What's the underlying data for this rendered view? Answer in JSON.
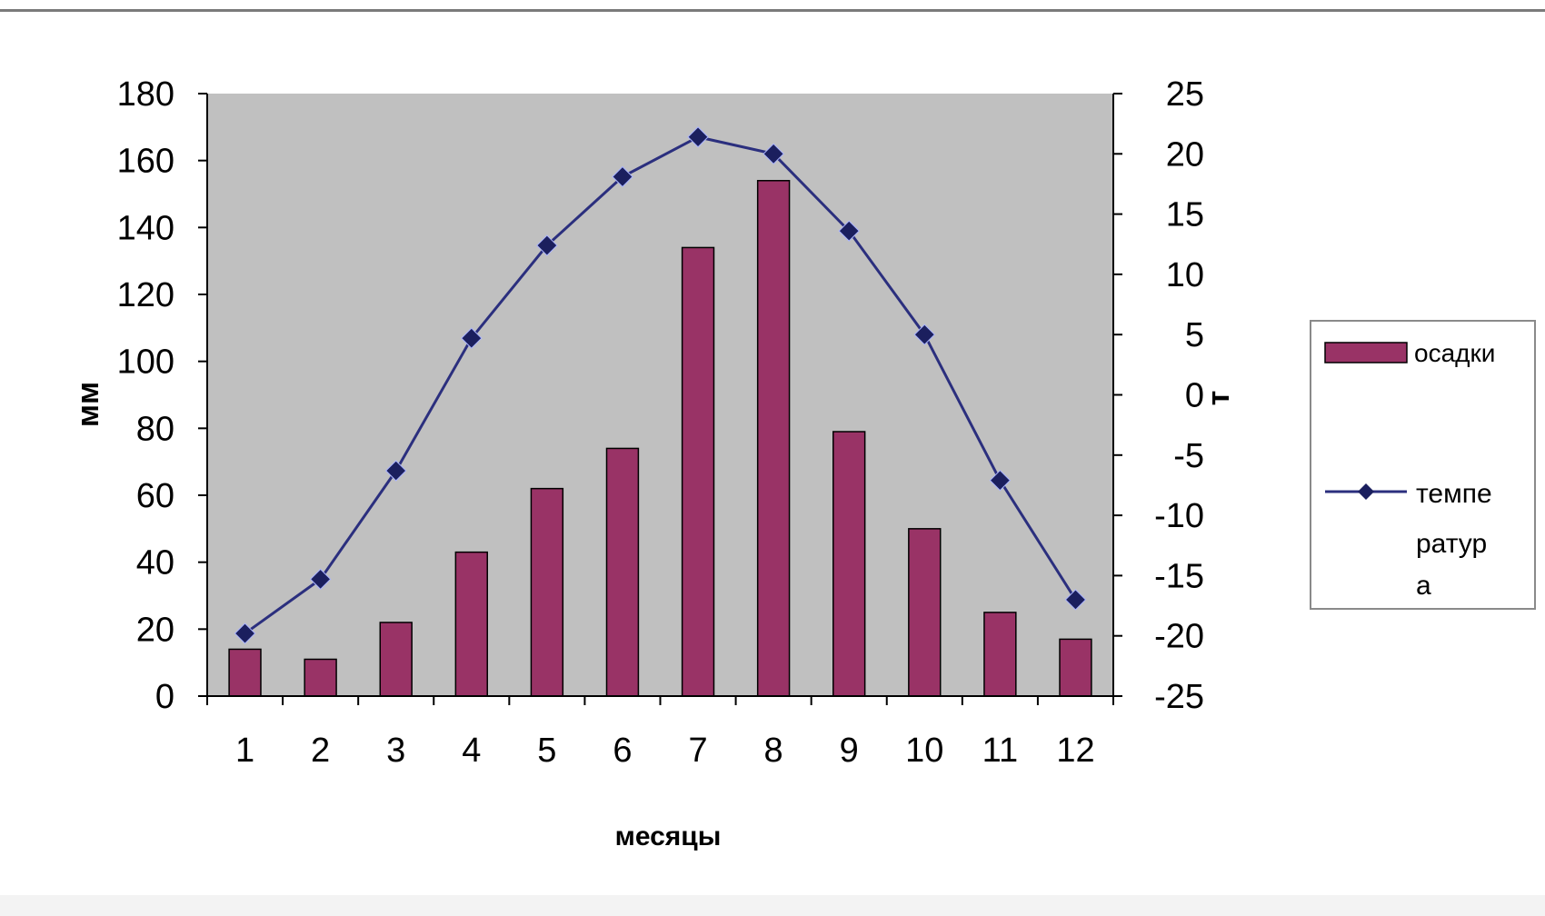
{
  "chart_data": {
    "type": "bar",
    "categories": [
      "1",
      "2",
      "3",
      "4",
      "5",
      "6",
      "7",
      "8",
      "9",
      "10",
      "11",
      "12"
    ],
    "series": [
      {
        "name": "осадки",
        "type": "bar",
        "axis": "left",
        "values": [
          14,
          11,
          22,
          43,
          62,
          74,
          134,
          154,
          79,
          50,
          25,
          17
        ],
        "color": "#993366"
      },
      {
        "name": "темпе ратур а",
        "type": "line",
        "axis": "right",
        "values": [
          -19.8,
          -15.3,
          -6.3,
          4.7,
          12.4,
          18.1,
          21.4,
          20.0,
          13.6,
          5.0,
          -7.1,
          -17.0
        ],
        "color": "#2b2f7e",
        "marker": "diamond"
      }
    ],
    "xlabel": "месяцы",
    "ylabel": "мм",
    "y2label": "т",
    "ylim": [
      0,
      180
    ],
    "y2lim": [
      -25,
      25
    ],
    "yticks": [
      0,
      20,
      40,
      60,
      80,
      100,
      120,
      140,
      160,
      180
    ],
    "y2ticks": [
      -25,
      -20,
      -15,
      -10,
      -5,
      0,
      5,
      10,
      15,
      20,
      25
    ],
    "plot_background": "#c0c0c0",
    "grid": false,
    "legend_position": "right",
    "legend": {
      "bar_label": "осадки",
      "line_label_lines": [
        "темпе",
        "ратур",
        "а"
      ]
    }
  }
}
